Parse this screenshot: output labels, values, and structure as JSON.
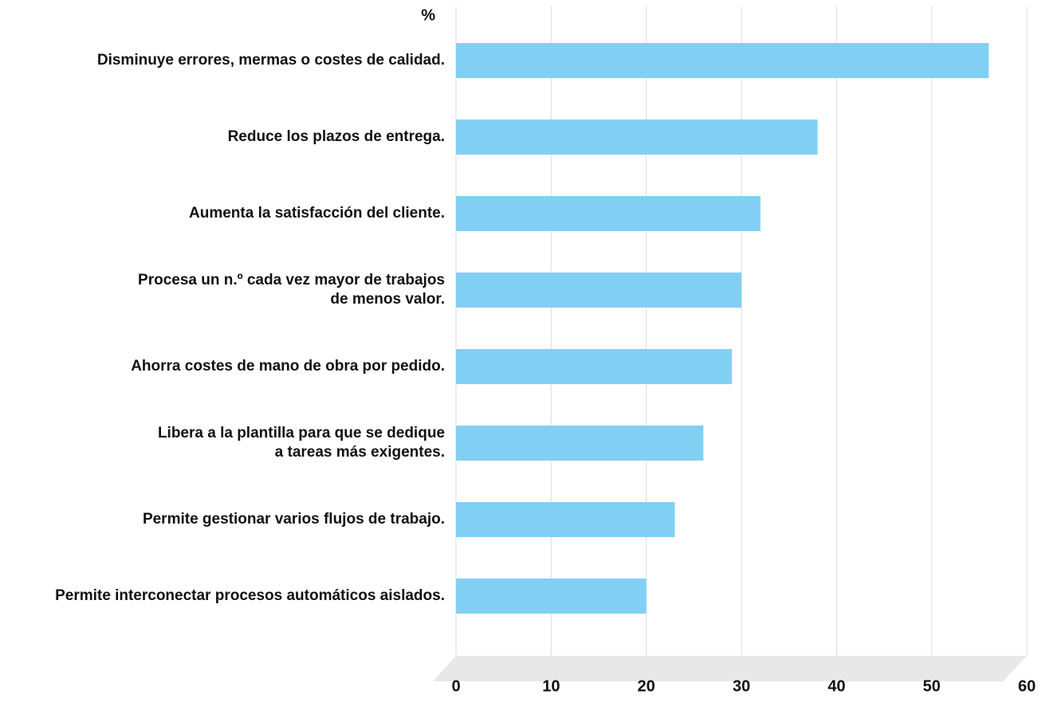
{
  "chart_data": {
    "type": "bar",
    "orientation": "horizontal",
    "x_label": "%",
    "categories": [
      "Disminuye errores, mermas o costes de calidad.",
      "Reduce los plazos de entrega.",
      "Aumenta la satisfacción del cliente.",
      "Procesa un n.º cada vez mayor de trabajos\nde menos valor.",
      "Ahorra costes de mano de obra por pedido.",
      "Libera a la plantilla para que se dedique\na tareas más exigentes.",
      "Permite gestionar varios flujos de trabajo.",
      "Permite interconectar procesos automáticos aislados."
    ],
    "values": [
      56,
      38,
      32,
      30,
      29,
      26,
      23,
      20
    ],
    "color": "#81d0f4",
    "xlim": [
      0,
      60
    ],
    "xticks": [
      0,
      10,
      20,
      30,
      40,
      50,
      60
    ],
    "grid": true
  }
}
